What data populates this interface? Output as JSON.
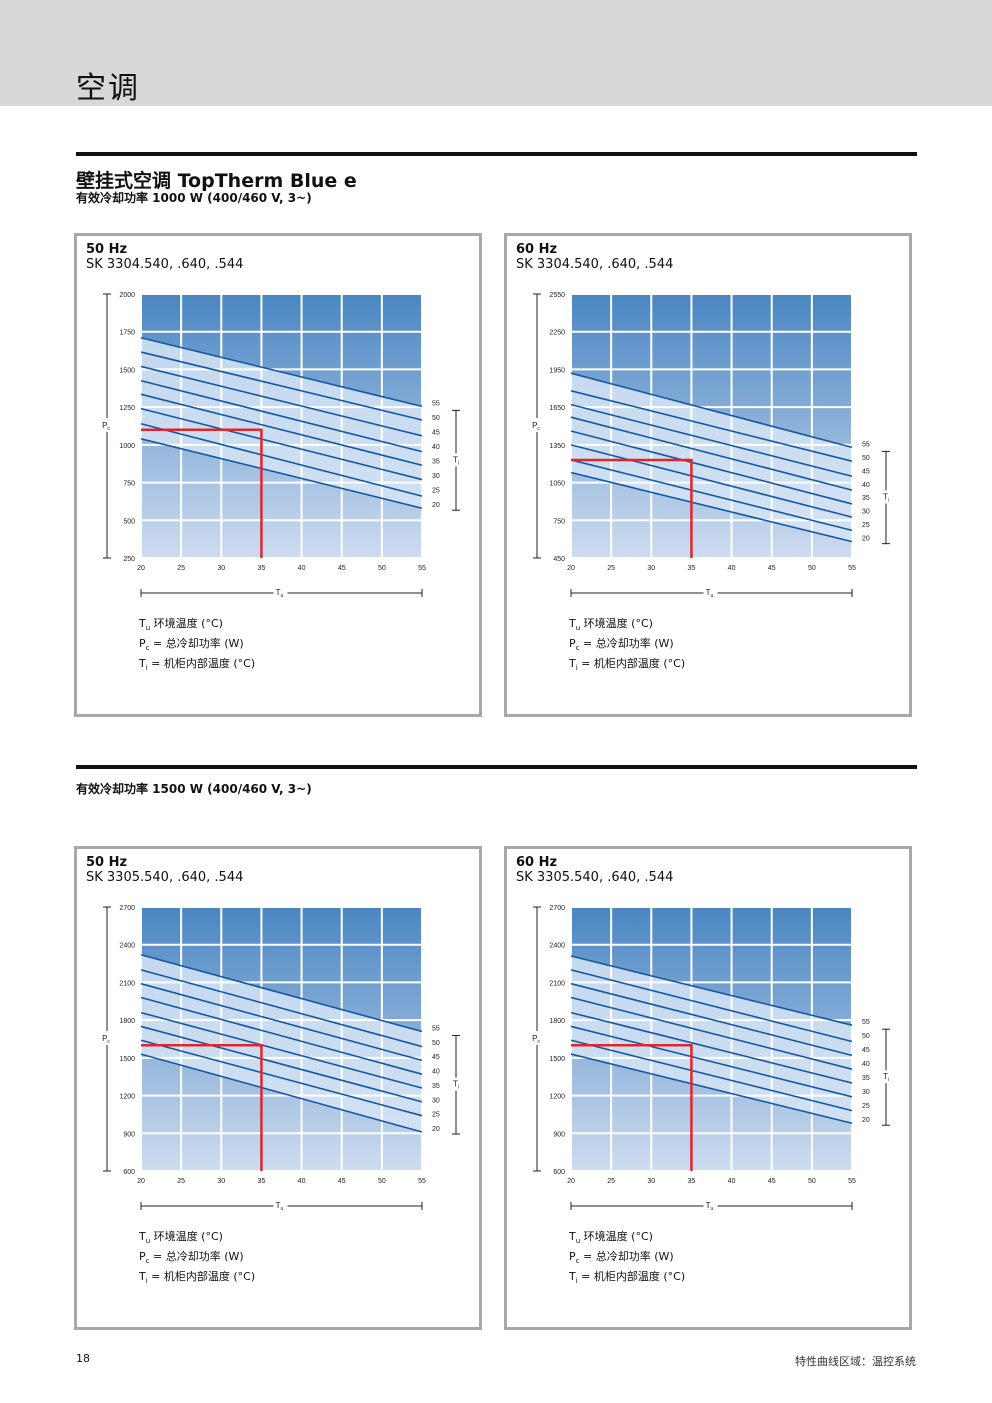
{
  "header": {
    "title": "空调"
  },
  "section1": {
    "title": "壁挂式空调 TopTherm Blue e",
    "subtitle": "有效冷却功率 1000 W (400/460 V, 3~)"
  },
  "section2": {
    "subtitle": "有效冷却功率 1500 W (400/460 V, 3~)"
  },
  "legend": {
    "tu_sym": "T",
    "tu_sub": "u",
    "tu_text": " 环境温度 (°C)",
    "pc_sym": "P",
    "pc_sub": "c",
    "pc_text": " = 总冷却功率 (W)",
    "ti_sym": "T",
    "ti_sub": "i",
    "ti_text": "  = 机柜内部温度 (°C)"
  },
  "footer": {
    "page_number": "18",
    "caption": "特性曲线区域：温控系统"
  },
  "colors": {
    "gradient_top": "#4a86c2",
    "gradient_bottom": "#cedcf0",
    "curve": "#1459a4",
    "band": "#d6e4f4",
    "marker": "#e0262d"
  },
  "panels": [
    {
      "hz": "50 Hz",
      "model": "SK 3304.540, .640, .544"
    },
    {
      "hz": "60 Hz",
      "model": "SK 3304.540, .640, .544"
    },
    {
      "hz": "50 Hz",
      "model": "SK 3305.540, .640, .544"
    },
    {
      "hz": "60 Hz",
      "model": "SK 3305.540, .640, .544"
    }
  ],
  "chart_data": [
    {
      "type": "line",
      "x_label": "Tu",
      "y_label": "Pc",
      "series_axis_label": "Ti",
      "x_ticks": [
        20,
        25,
        30,
        35,
        40,
        45,
        50,
        55
      ],
      "y_ticks": [
        250,
        500,
        750,
        1000,
        1250,
        1500,
        1750,
        2000
      ],
      "xlim": [
        20,
        55
      ],
      "ylim": [
        250,
        2000
      ],
      "series_labels": [
        55,
        50,
        45,
        40,
        35,
        30,
        25,
        20
      ],
      "series": [
        {
          "name": "55",
          "x": [
            20,
            55
          ],
          "y": [
            1710,
            1255
          ]
        },
        {
          "name": "50",
          "x": [
            20,
            55
          ],
          "y": [
            1615,
            1165
          ]
        },
        {
          "name": "45",
          "x": [
            20,
            55
          ],
          "y": [
            1520,
            1060
          ]
        },
        {
          "name": "40",
          "x": [
            20,
            55
          ],
          "y": [
            1425,
            955
          ]
        },
        {
          "name": "35",
          "x": [
            20,
            55
          ],
          "y": [
            1335,
            865
          ]
        },
        {
          "name": "30",
          "x": [
            20,
            55
          ],
          "y": [
            1240,
            770
          ]
        },
        {
          "name": "25",
          "x": [
            20,
            55
          ],
          "y": [
            1140,
            660
          ]
        },
        {
          "name": "20",
          "x": [
            20,
            55
          ],
          "y": [
            1040,
            580
          ]
        }
      ],
      "marker": {
        "x": 35,
        "y": 1100
      }
    },
    {
      "type": "line",
      "x_label": "Tu",
      "y_label": "Pc",
      "series_axis_label": "Ti",
      "x_ticks": [
        20,
        25,
        30,
        35,
        40,
        45,
        50,
        55
      ],
      "y_ticks": [
        450,
        750,
        1050,
        1350,
        1650,
        1950,
        2250,
        2550
      ],
      "xlim": [
        20,
        55
      ],
      "ylim": [
        450,
        2550
      ],
      "series_labels": [
        55,
        50,
        45,
        40,
        35,
        30,
        25,
        20
      ],
      "series": [
        {
          "name": "55",
          "x": [
            20,
            55
          ],
          "y": [
            1920,
            1330
          ]
        },
        {
          "name": "50",
          "x": [
            20,
            55
          ],
          "y": [
            1780,
            1220
          ]
        },
        {
          "name": "45",
          "x": [
            20,
            55
          ],
          "y": [
            1670,
            1100
          ]
        },
        {
          "name": "40",
          "x": [
            20,
            55
          ],
          "y": [
            1570,
            990
          ]
        },
        {
          "name": "35",
          "x": [
            20,
            55
          ],
          "y": [
            1460,
            880
          ]
        },
        {
          "name": "30",
          "x": [
            20,
            55
          ],
          "y": [
            1350,
            775
          ]
        },
        {
          "name": "25",
          "x": [
            20,
            55
          ],
          "y": [
            1230,
            670
          ]
        },
        {
          "name": "20",
          "x": [
            20,
            55
          ],
          "y": [
            1130,
            580
          ]
        }
      ],
      "marker": {
        "x": 35,
        "y": 1230
      }
    },
    {
      "type": "line",
      "x_label": "Tu",
      "y_label": "Pc",
      "series_axis_label": "Ti",
      "x_ticks": [
        20,
        25,
        30,
        35,
        40,
        45,
        50,
        55
      ],
      "y_ticks": [
        600,
        900,
        1200,
        1500,
        1800,
        2100,
        2400,
        2700
      ],
      "xlim": [
        20,
        55
      ],
      "ylim": [
        600,
        2700
      ],
      "series_labels": [
        55,
        50,
        45,
        40,
        35,
        30,
        25,
        20
      ],
      "series": [
        {
          "name": "55",
          "x": [
            20,
            55
          ],
          "y": [
            2320,
            1710
          ]
        },
        {
          "name": "50",
          "x": [
            20,
            55
          ],
          "y": [
            2200,
            1590
          ]
        },
        {
          "name": "45",
          "x": [
            20,
            55
          ],
          "y": [
            2090,
            1480
          ]
        },
        {
          "name": "40",
          "x": [
            20,
            55
          ],
          "y": [
            1980,
            1370
          ]
        },
        {
          "name": "35",
          "x": [
            20,
            55
          ],
          "y": [
            1860,
            1260
          ]
        },
        {
          "name": "30",
          "x": [
            20,
            55
          ],
          "y": [
            1750,
            1150
          ]
        },
        {
          "name": "25",
          "x": [
            20,
            55
          ],
          "y": [
            1640,
            1040
          ]
        },
        {
          "name": "20",
          "x": [
            20,
            55
          ],
          "y": [
            1530,
            910
          ]
        }
      ],
      "marker": {
        "x": 35,
        "y": 1600
      }
    },
    {
      "type": "line",
      "x_label": "Tu",
      "y_label": "Pc",
      "series_axis_label": "Ti",
      "x_ticks": [
        20,
        25,
        30,
        35,
        40,
        45,
        50,
        55
      ],
      "y_ticks": [
        600,
        900,
        1200,
        1500,
        1800,
        2100,
        2400,
        2700
      ],
      "xlim": [
        20,
        55
      ],
      "ylim": [
        600,
        2700
      ],
      "series_labels": [
        55,
        50,
        45,
        40,
        35,
        30,
        25,
        20
      ],
      "series": [
        {
          "name": "55",
          "x": [
            20,
            55
          ],
          "y": [
            2310,
            1760
          ]
        },
        {
          "name": "50",
          "x": [
            20,
            55
          ],
          "y": [
            2200,
            1630
          ]
        },
        {
          "name": "45",
          "x": [
            20,
            55
          ],
          "y": [
            2090,
            1520
          ]
        },
        {
          "name": "40",
          "x": [
            20,
            55
          ],
          "y": [
            1980,
            1410
          ]
        },
        {
          "name": "35",
          "x": [
            20,
            55
          ],
          "y": [
            1860,
            1300
          ]
        },
        {
          "name": "30",
          "x": [
            20,
            55
          ],
          "y": [
            1750,
            1190
          ]
        },
        {
          "name": "25",
          "x": [
            20,
            55
          ],
          "y": [
            1640,
            1080
          ]
        },
        {
          "name": "20",
          "x": [
            20,
            55
          ],
          "y": [
            1530,
            980
          ]
        }
      ],
      "marker": {
        "x": 35,
        "y": 1600
      }
    }
  ]
}
